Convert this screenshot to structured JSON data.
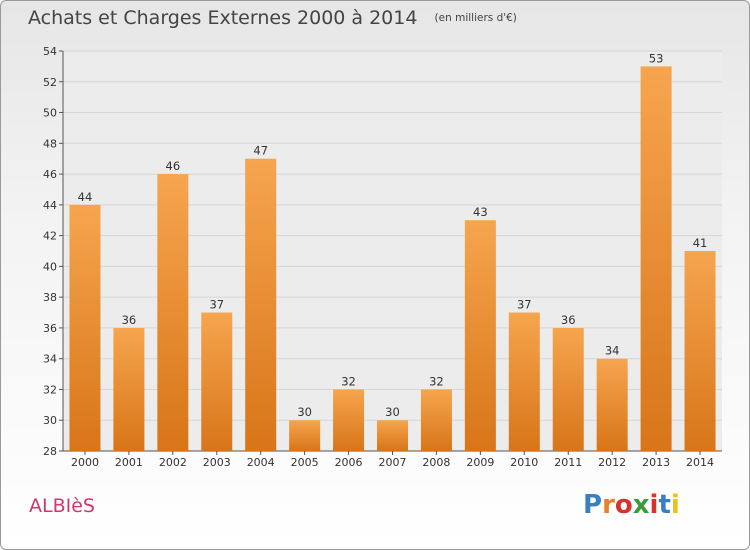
{
  "header": {
    "title": "Achats et Charges Externes 2000 à 2014",
    "subtitle": "(en milliers d'€)"
  },
  "commune": "ALBIèS",
  "logo": {
    "text": "Proxiti",
    "letter_colors": [
      "#3a7fc4",
      "#e8802a",
      "#d6322e",
      "#3b9a3b",
      "#d6322e",
      "#3a7fc4",
      "#e8c41a"
    ]
  },
  "colors": {
    "bar_light": "#f6a54f",
    "bar_dark": "#d87518",
    "grid": "#d6d6d6"
  },
  "chart_data": {
    "type": "bar",
    "title": "Achats et Charges Externes 2000 à 2014",
    "subtitle": "(en milliers d'€)",
    "categories": [
      "2000",
      "2001",
      "2002",
      "2003",
      "2004",
      "2005",
      "2006",
      "2007",
      "2008",
      "2009",
      "2010",
      "2011",
      "2012",
      "2013",
      "2014"
    ],
    "values": [
      44,
      36,
      46,
      37,
      47,
      30,
      32,
      30,
      32,
      43,
      37,
      36,
      34,
      53,
      41
    ],
    "ylim": [
      28,
      54
    ],
    "yticks": [
      28,
      30,
      32,
      34,
      36,
      38,
      40,
      42,
      44,
      46,
      48,
      50,
      52,
      54
    ],
    "grid": true,
    "data_labels": true
  }
}
